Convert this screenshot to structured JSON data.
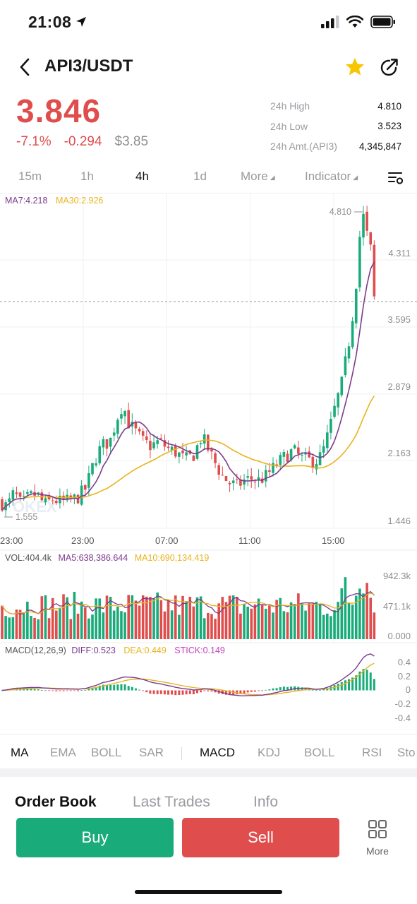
{
  "status_bar": {
    "time": "21:08"
  },
  "header": {
    "pair": "API3/USDT"
  },
  "ticker": {
    "last_price": "3.846",
    "change_pct": "-7.1%",
    "change_abs": "-0.294",
    "usd_price": "$3.85",
    "stats": [
      {
        "label": "24h High",
        "value": "4.810"
      },
      {
        "label": "24h Low",
        "value": "3.523"
      },
      {
        "label": "24h Amt.(API3)",
        "value": "4,345,847"
      }
    ]
  },
  "timeframes": {
    "items": [
      "15m",
      "1h",
      "4h",
      "1d"
    ],
    "active": "4h",
    "more": "More",
    "indicator": "Indicator"
  },
  "colors": {
    "up": "#1aab7a",
    "down": "#e04d4d",
    "ma7": "#7b3b8e",
    "ma30": "#e8b31e",
    "stick": "#c23fc2"
  },
  "chart": {
    "ma_legend": {
      "ma7": "MA7:4.218",
      "ma30": "MA30:2.926"
    },
    "price_labels": [
      "4.311",
      "3.595",
      "2.879",
      "2.163",
      "1.446"
    ],
    "high_marker": "4.810",
    "low_marker": "1.555",
    "time_labels": [
      "23:00",
      "23:00",
      "07:00",
      "11:00",
      "15:00"
    ],
    "watermark": "OKEX",
    "vol_legend": {
      "vol": "VOL:404.4k",
      "ma5": "MA5:638,386.644",
      "ma10": "MA10:690,134.419"
    },
    "vol_labels": [
      "942.3k",
      "471.1k",
      "0.000"
    ],
    "macd_legend": {
      "macd": "MACD(12,26,9)",
      "diff": "DIFF:0.523",
      "dea": "DEA:0.449",
      "stick": "STICK:0.149"
    },
    "macd_labels": [
      "0.4",
      "0.2",
      "0",
      "-0.2",
      "-0.4"
    ]
  },
  "chart_data": {
    "type": "candlestick",
    "pair": "API3/USDT",
    "interval": "4h",
    "ylim": [
      1.446,
      4.81
    ],
    "price_ticks": [
      4.311,
      3.595,
      2.879,
      2.163,
      1.446
    ],
    "high": 4.81,
    "low": 1.555,
    "last": 3.846,
    "ma7_last": 4.218,
    "ma30_last": 2.926,
    "volume_ticks": [
      942300,
      471100,
      0
    ],
    "macd": {
      "diff": 0.523,
      "dea": 0.449,
      "stick": 0.149
    },
    "macd_ticks": [
      0.4,
      0.2,
      0,
      -0.2,
      -0.4
    ]
  },
  "indicator_tabs": {
    "main": [
      "MA",
      "EMA",
      "BOLL",
      "SAR"
    ],
    "sub": [
      "MACD",
      "KDJ",
      "BOLL",
      "RSI",
      "Sto"
    ],
    "main_active": "MA",
    "sub_active": "MACD"
  },
  "book_tabs": {
    "items": [
      "Order Book",
      "Last Trades",
      "Info"
    ],
    "active": "Order Book"
  },
  "actions": {
    "buy": "Buy",
    "sell": "Sell",
    "more": "More"
  }
}
